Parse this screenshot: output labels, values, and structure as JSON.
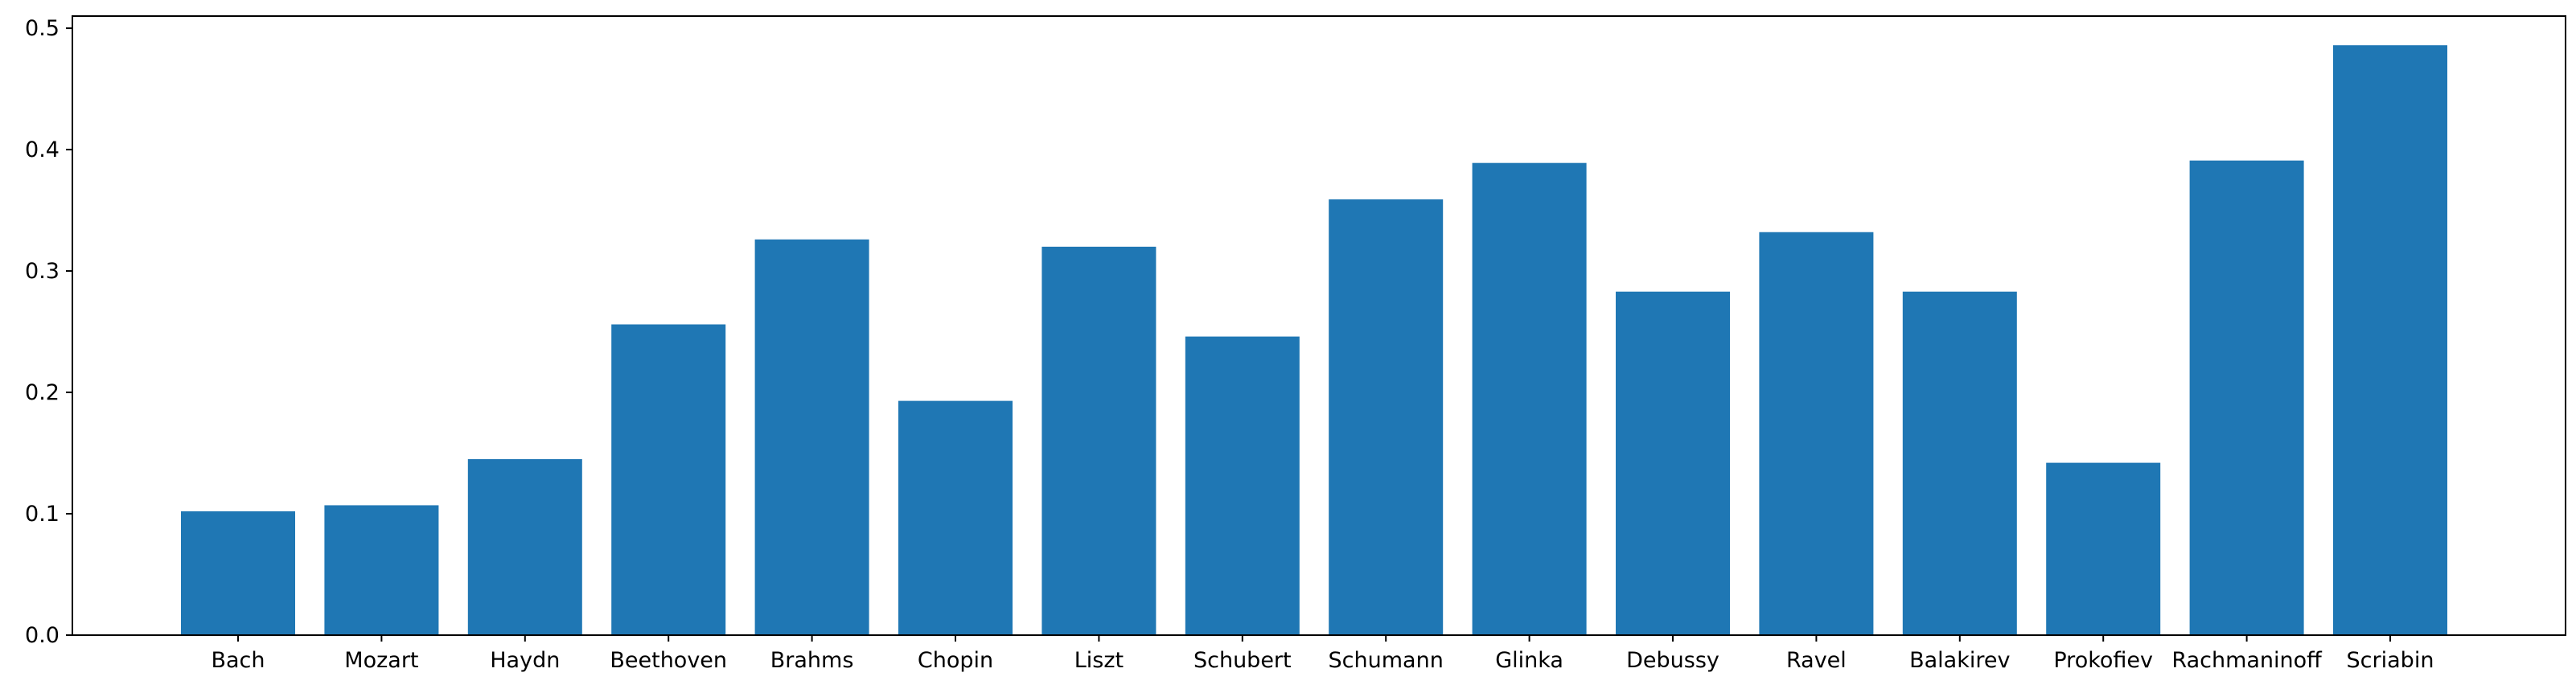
{
  "chart_data": {
    "type": "bar",
    "title": "",
    "xlabel": "",
    "ylabel": "",
    "categories": [
      "Bach",
      "Mozart",
      "Haydn",
      "Beethoven",
      "Brahms",
      "Chopin",
      "Liszt",
      "Schubert",
      "Schumann",
      "Glinka",
      "Debussy",
      "Ravel",
      "Balakirev",
      "Prokofiev",
      "Rachmaninoff",
      "Scriabin"
    ],
    "values": [
      0.102,
      0.107,
      0.145,
      0.256,
      0.326,
      0.193,
      0.32,
      0.246,
      0.359,
      0.389,
      0.283,
      0.332,
      0.283,
      0.142,
      0.391,
      0.486
    ],
    "ylim": [
      0,
      0.51
    ],
    "yticks": [
      0.0,
      0.1,
      0.2,
      0.3,
      0.4,
      0.5
    ],
    "ytick_labels": [
      "0.0",
      "0.1",
      "0.2",
      "0.3",
      "0.4",
      "0.5"
    ],
    "bar_color": "#1f77b4",
    "grid": false,
    "legend": "none"
  }
}
